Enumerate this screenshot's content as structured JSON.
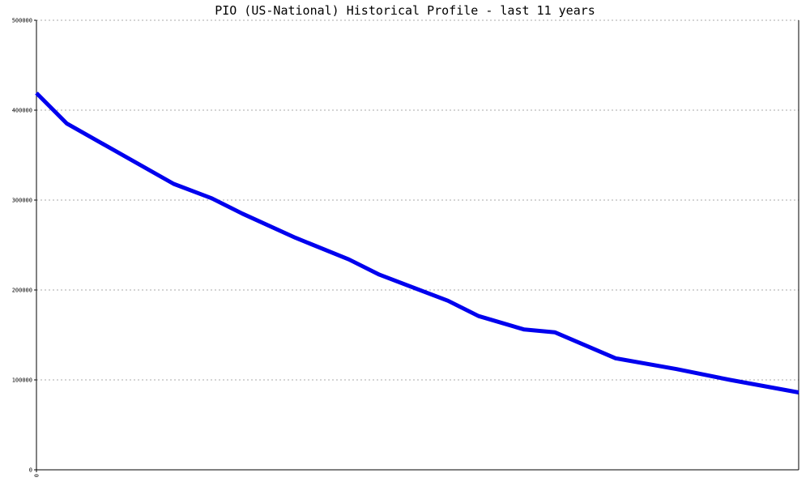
{
  "chart_data": {
    "type": "line",
    "title": "PIO (US-National) Historical Profile - last 11 years",
    "xlabel": "",
    "ylabel": "",
    "x_tick_labels": [
      "0"
    ],
    "y_tick_labels": [
      "0",
      "100000",
      "200000",
      "300000",
      "400000",
      "500000"
    ],
    "ylim": [
      0,
      500000
    ],
    "xlim": [
      0,
      1
    ],
    "grid": true,
    "series": [
      {
        "color": "#0000ee",
        "x": [
          0.0,
          0.04,
          0.18,
          0.23,
          0.27,
          0.34,
          0.41,
          0.45,
          0.54,
          0.58,
          0.64,
          0.68,
          0.76,
          0.84,
          0.91,
          1.0
        ],
        "values": [
          419000,
          385000,
          318000,
          302000,
          285000,
          258000,
          234000,
          217000,
          188000,
          171000,
          156000,
          153000,
          124000,
          112000,
          100000,
          86000
        ]
      }
    ]
  }
}
